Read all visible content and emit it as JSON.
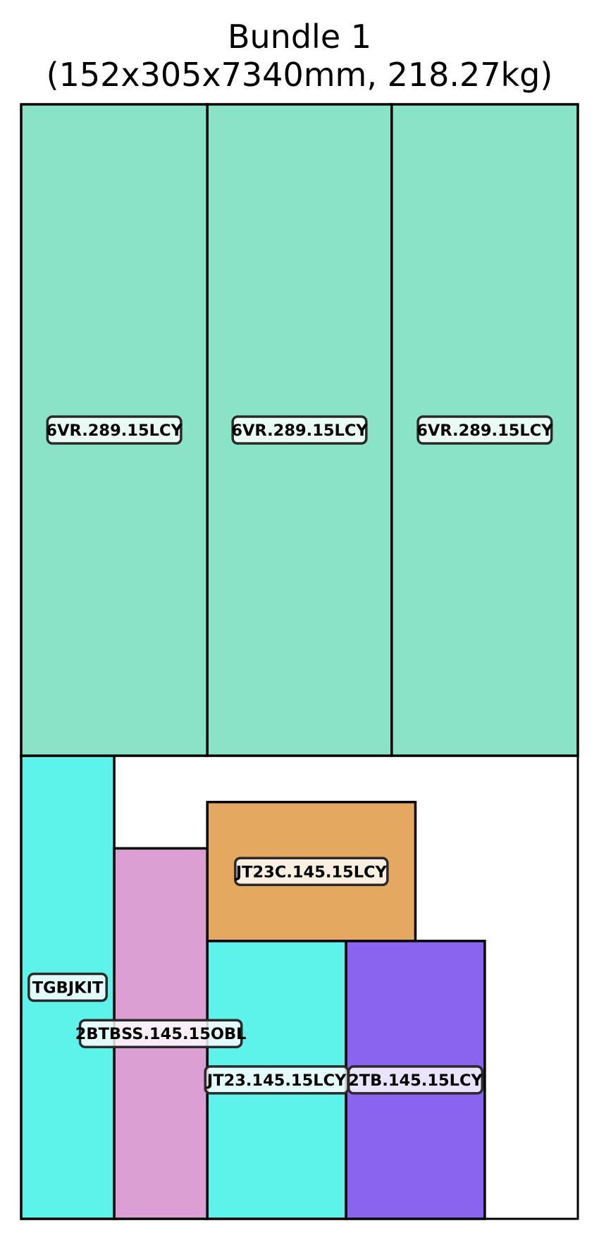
{
  "title": {
    "line1": "Bundle 1",
    "line2": "(152x305x7340mm, 218.27kg)"
  },
  "bundle": {
    "width_mm": 305,
    "height_mm": 7340
  },
  "colors": {
    "turquoise": "#5df2ea",
    "orchid": "#db9fd3",
    "sandy": "#e5a860",
    "purple": "#8a63ee",
    "seafoam": "#8be3c7"
  },
  "pieces": [
    {
      "id": "tgbjkit",
      "label": "TGBJKIT",
      "color": "#5df2ea",
      "x0": 0,
      "x1": 51,
      "y0": 0,
      "y1": 3050
    },
    {
      "id": "2btbss",
      "label": "2BTBSS.145.15OBL",
      "color": "#db9fd3",
      "x0": 51,
      "x1": 102,
      "y0": 0,
      "y1": 2440
    },
    {
      "id": "jt23",
      "label": "JT23.145.15LCY",
      "color": "#5df2ea",
      "x0": 102,
      "x1": 178,
      "y0": 0,
      "y1": 1830
    },
    {
      "id": "2tb",
      "label": "2TB.145.15LCY",
      "color": "#8a63ee",
      "x0": 178,
      "x1": 254,
      "y0": 0,
      "y1": 1830
    },
    {
      "id": "jt23c",
      "label": "JT23C.145.15LCY",
      "color": "#e5a860",
      "x0": 102,
      "x1": 216,
      "y0": 1830,
      "y1": 2745
    },
    {
      "id": "6vr-1",
      "label": "6VR.289.15LCY",
      "color": "#8be3c7",
      "x0": 0,
      "x1": 102,
      "y0": 3050,
      "y1": 7340
    },
    {
      "id": "6vr-2",
      "label": "6VR.289.15LCY",
      "color": "#8be3c7",
      "x0": 102,
      "x1": 203,
      "y0": 3050,
      "y1": 7340
    },
    {
      "id": "6vr-3",
      "label": "6VR.289.15LCY",
      "color": "#8be3c7",
      "x0": 203,
      "x1": 305,
      "y0": 3050,
      "y1": 7340
    }
  ]
}
